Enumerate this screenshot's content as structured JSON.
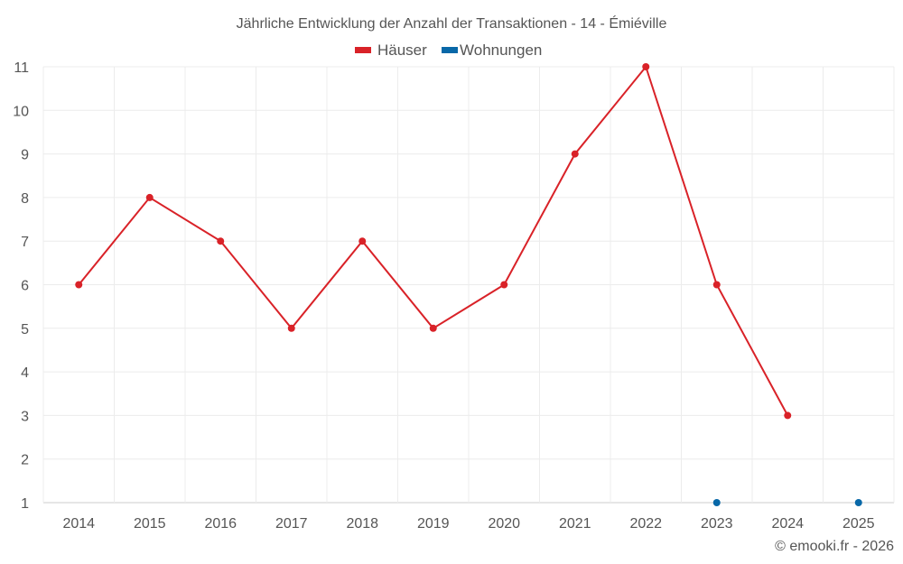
{
  "chart_data": {
    "type": "line",
    "title": "Jährliche Entwicklung der Anzahl der Transaktionen - 14 - Émiéville",
    "categories": [
      "2014",
      "2015",
      "2016",
      "2017",
      "2018",
      "2019",
      "2020",
      "2021",
      "2022",
      "2023",
      "2024",
      "2025"
    ],
    "yticks": [
      "1",
      "2",
      "3",
      "4",
      "5",
      "6",
      "7",
      "8",
      "9",
      "10",
      "11"
    ],
    "ylim": [
      1,
      11
    ],
    "grid": true,
    "legend_position": "top-center",
    "series": [
      {
        "name": "Häuser",
        "color": "#d92228",
        "values": [
          6,
          8,
          7,
          5,
          7,
          5,
          6,
          9,
          11,
          6,
          3,
          null
        ]
      },
      {
        "name": "Wohnungen",
        "color": "#0868a8",
        "values": [
          null,
          null,
          null,
          null,
          null,
          null,
          null,
          null,
          null,
          1,
          null,
          1
        ]
      }
    ],
    "credit": "© emooki.fr - 2026"
  }
}
